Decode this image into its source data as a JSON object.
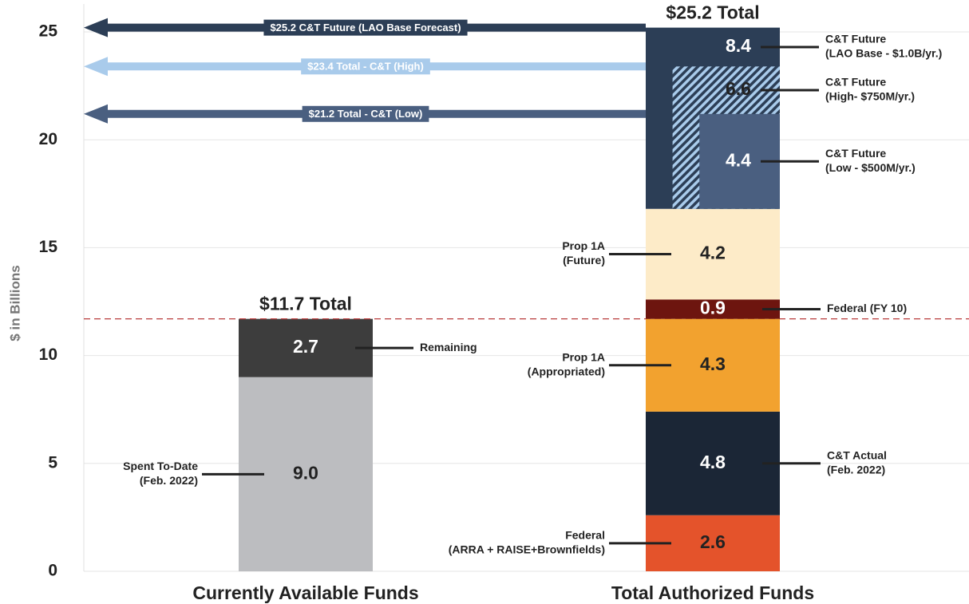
{
  "chart_data": {
    "type": "bar",
    "y_label": "$ in Billions",
    "ylim": [
      0,
      26
    ],
    "yticks": [
      0,
      5,
      10,
      15,
      20,
      25
    ],
    "grid": true,
    "categories": [
      "Currently Available Funds",
      "Total Authorized Funds"
    ],
    "bars": [
      {
        "total": 11.7,
        "total_label": "$11.7 Total",
        "total_line_color": "#b83a3a",
        "segments": [
          {
            "name": [
              "Spent To-Date",
              "(Feb. 2022)"
            ],
            "value": 9,
            "value_label": "9.0",
            "color": "#bcbdc0",
            "label_color": "#222222",
            "label_side": "left"
          },
          {
            "name": [
              "Remaining"
            ],
            "value": 2.7,
            "color": "#3d3d3d",
            "label_color": "#ffffff",
            "label_side": "right"
          }
        ]
      },
      {
        "total": 25.2,
        "total_label": "$25.2 Total",
        "segments": [
          {
            "name": [
              "Federal",
              "(ARRA + RAISE+Brownfields)"
            ],
            "value": 2.6,
            "color": "#e4532b",
            "label_color": "#222222",
            "label_side": "left"
          },
          {
            "name": [
              "C&T Actual",
              "(Feb. 2022)"
            ],
            "value": 4.8,
            "color": "#1b2636",
            "label_color": "#ffffff",
            "label_side": "right"
          },
          {
            "name": [
              "Prop 1A",
              "(Appropriated)"
            ],
            "value": 4.3,
            "color": "#f2a22f",
            "label_color": "#222222",
            "label_side": "left"
          },
          {
            "name": [
              "Federal (FY 10)"
            ],
            "value": 0.9,
            "color": "#6d150f",
            "label_color": "#ffffff",
            "label_side": "right"
          },
          {
            "name": [
              "Prop 1A",
              "(Future)"
            ],
            "value": 4.2,
            "color": "#fdebc8",
            "label_color": "#222222",
            "label_side": "left"
          }
        ],
        "scenarios": [
          {
            "name": [
              "C&T Future",
              "(LAO Base - $1.0B/yr.)"
            ],
            "value": 8.4,
            "color": "#2c3e56",
            "label_color": "#ffffff",
            "label_side": "right"
          },
          {
            "name": [
              "C&T Future",
              "(High- $750M/yr.)"
            ],
            "value": 6.6,
            "color": "#2c3e56",
            "hatch": "#a9cbeb",
            "label_color": "#222222",
            "label_side": "right"
          },
          {
            "name": [
              "C&T Future",
              "(Low - $500M/yr.)"
            ],
            "value": 4.4,
            "color": "#4a5f80",
            "label_color": "#ffffff",
            "label_side": "right"
          }
        ]
      }
    ],
    "reference_lines": [
      {
        "value": 25.2,
        "label": "$25.2 C&T Future (LAO Base Forecast)",
        "color": "#2c3e56"
      },
      {
        "value": 23.4,
        "label": "$23.4 Total - C&T (High)",
        "color": "#a9cbeb"
      },
      {
        "value": 21.2,
        "label": "$21.2 Total - C&T (Low)",
        "color": "#4a5f80"
      }
    ]
  }
}
